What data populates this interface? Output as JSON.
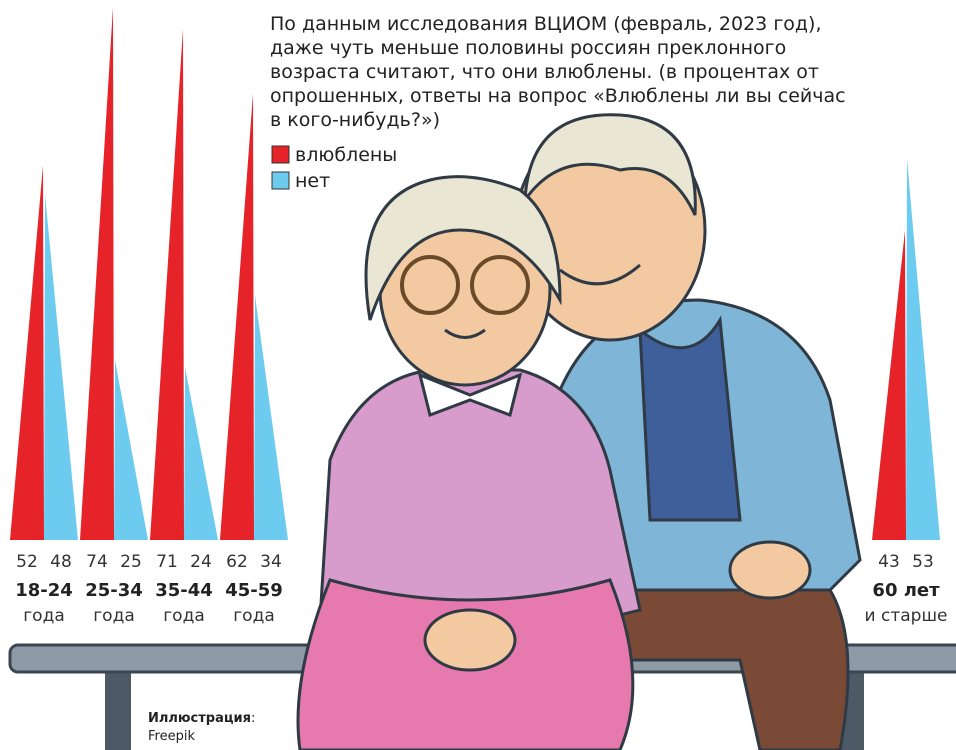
{
  "chart_data": {
    "type": "spike",
    "title": "По данным исследования ВЦИОМ (февраль, 2023 год), даже чуть меньше половины россиян преклонного возраста считают, что они влюблены. (в процентах от опрошенных, ответы на вопрос «Влюблены ли вы сейчас в кого-нибудь?»)",
    "categories": [
      "18-24",
      "25-34",
      "35-44",
      "45-59",
      "60 лет"
    ],
    "category_notes": [
      "года",
      "года",
      "года",
      "года",
      "и старше"
    ],
    "series": [
      {
        "name": "влюблены",
        "color": "#e52329",
        "values": [
          52,
          74,
          71,
          62,
          43
        ]
      },
      {
        "name": "нет",
        "color": "#6dcbef",
        "values": [
          48,
          25,
          24,
          34,
          53
        ]
      }
    ],
    "ylim": [
      0,
      75
    ],
    "credit": {
      "label": "Иллюстрация",
      "source": "Freepik"
    }
  }
}
